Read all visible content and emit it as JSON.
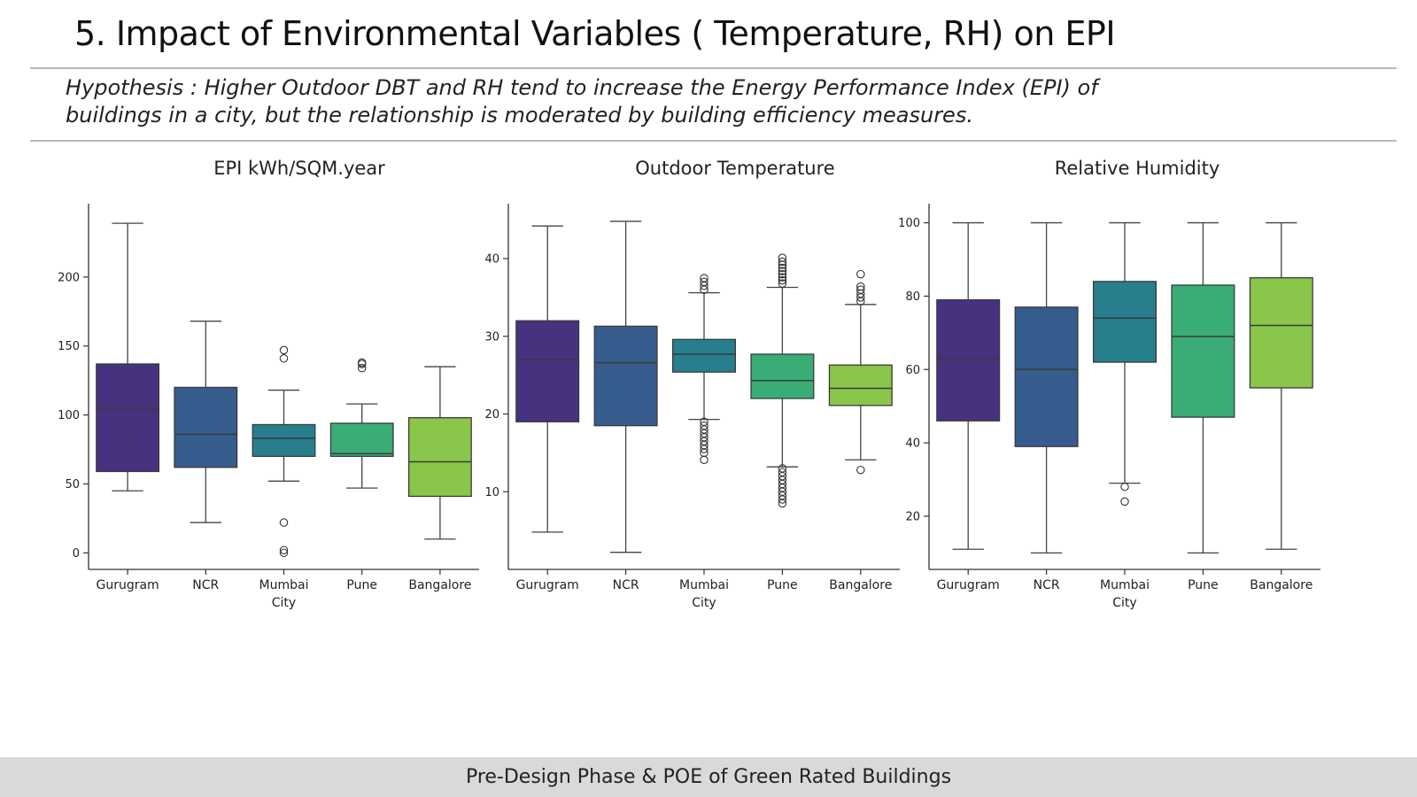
{
  "slide": {
    "title": "5. Impact of Environmental Variables ( Temperature, RH) on EPI",
    "hypothesis_line1": "Hypothesis : Higher Outdoor DBT and RH tend to increase the Energy Performance  Index (EPI)  of",
    "hypothesis_line2": "buildings in a city, but the relationship is moderated  by building efficiency measures.",
    "footer": "Pre-Design Phase & POE of Green Rated Buildings"
  },
  "chart_data": [
    {
      "type": "boxplot",
      "title": "EPI kWh/SQM.year",
      "categories": [
        "Gurugram",
        "NCR",
        "Mumbai City",
        "Pune",
        "Bangalore"
      ],
      "colors": [
        "#46327e",
        "#365c8d",
        "#277f8e",
        "#3aac76",
        "#8ac649"
      ],
      "yticks": [
        0,
        50,
        100,
        150,
        200
      ],
      "ylim": [
        -12,
        250
      ],
      "boxes": [
        {
          "min": 45,
          "q1": 59,
          "median": 104,
          "q3": 137,
          "max": 239,
          "outliers": []
        },
        {
          "min": 22,
          "q1": 62,
          "median": 86,
          "q3": 120,
          "max": 168,
          "outliers": []
        },
        {
          "min": 52,
          "q1": 70,
          "median": 83,
          "q3": 93,
          "max": 118,
          "outliers": [
            141,
            147,
            22,
            2,
            0
          ]
        },
        {
          "min": 47,
          "q1": 70,
          "median": 72,
          "q3": 94,
          "max": 108,
          "outliers": [
            134,
            137,
            138
          ]
        },
        {
          "min": 10,
          "q1": 41,
          "median": 66,
          "q3": 98,
          "max": 135,
          "outliers": []
        }
      ]
    },
    {
      "type": "boxplot",
      "title": "Outdoor Temperature",
      "categories": [
        "Gurugram",
        "NCR",
        "Mumbai City",
        "Pune",
        "Bangalore"
      ],
      "colors": [
        "#46327e",
        "#365c8d",
        "#277f8e",
        "#3aac76",
        "#8ac649"
      ],
      "yticks": [
        10,
        20,
        30,
        40
      ],
      "ylim": [
        0,
        46.5
      ],
      "boxes": [
        {
          "min": 4.8,
          "q1": 19,
          "median": 27,
          "q3": 32,
          "max": 44.2,
          "outliers": []
        },
        {
          "min": 2.2,
          "q1": 18.5,
          "median": 26.6,
          "q3": 31.3,
          "max": 44.8,
          "outliers": []
        },
        {
          "min": 19.3,
          "q1": 25.4,
          "median": 27.7,
          "q3": 29.6,
          "max": 35.6,
          "outliers": [
            36,
            36.5,
            37,
            37.5,
            19,
            18.5,
            18,
            17.5,
            17,
            16.5,
            16,
            15.5,
            15,
            14.1
          ]
        },
        {
          "min": 13.2,
          "q1": 22,
          "median": 24.3,
          "q3": 27.7,
          "max": 36.3,
          "outliers": [
            36.8,
            37.2,
            37.6,
            38,
            38.4,
            38.8,
            39.2,
            39.6,
            40.1,
            13,
            12.5,
            12,
            11.5,
            11,
            10.5,
            10,
            9.5,
            9,
            8.5
          ]
        },
        {
          "min": 14.1,
          "q1": 21.1,
          "median": 23.3,
          "q3": 26.3,
          "max": 34.1,
          "outliers": [
            34.5,
            35,
            35.5,
            36,
            36.4,
            38,
            12.8
          ]
        }
      ]
    },
    {
      "type": "boxplot",
      "title": "Relative Humidity",
      "categories": [
        "Gurugram",
        "NCR",
        "Mumbai City",
        "Pune",
        "Bangalore"
      ],
      "colors": [
        "#46327e",
        "#365c8d",
        "#277f8e",
        "#3aac76",
        "#8ac649"
      ],
      "yticks": [
        20,
        40,
        60,
        80,
        100
      ],
      "ylim": [
        5.5,
        104
      ],
      "boxes": [
        {
          "min": 11,
          "q1": 46,
          "median": 63,
          "q3": 79,
          "max": 100,
          "outliers": []
        },
        {
          "min": 10,
          "q1": 39,
          "median": 60,
          "q3": 77,
          "max": 100,
          "outliers": []
        },
        {
          "min": 29,
          "q1": 62,
          "median": 74,
          "q3": 84,
          "max": 100,
          "outliers": [
            28,
            24
          ]
        },
        {
          "min": 10,
          "q1": 47,
          "median": 69,
          "q3": 83,
          "max": 100,
          "outliers": []
        },
        {
          "min": 11,
          "q1": 55,
          "median": 72,
          "q3": 85,
          "max": 100,
          "outliers": []
        }
      ]
    }
  ]
}
